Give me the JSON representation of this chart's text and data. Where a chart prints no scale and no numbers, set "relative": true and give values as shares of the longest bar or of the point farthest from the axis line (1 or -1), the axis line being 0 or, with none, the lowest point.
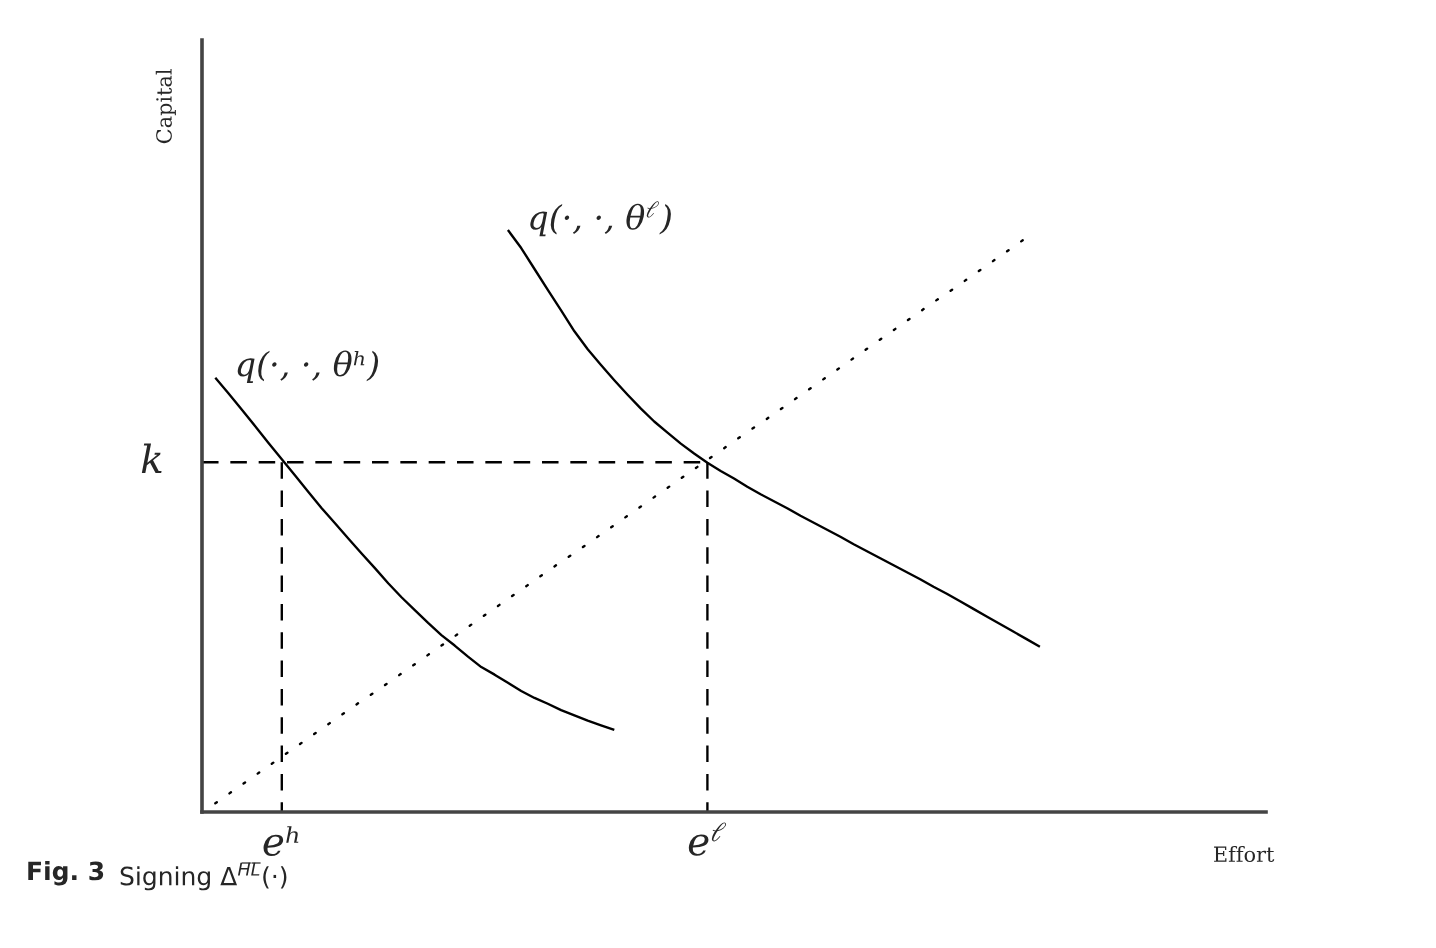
{
  "chart_data": {
    "type": "line",
    "relative": true,
    "xlabel": "Effort",
    "ylabel": "Capital",
    "tick_labels": "x",
    "line_style": "solid",
    "categories": [
      null,
      null,
      null,
      null,
      null,
      null,
      "eʰ",
      null,
      null,
      null,
      null,
      null,
      null,
      null,
      null,
      null,
      null,
      null,
      null,
      null,
      null,
      null,
      null,
      null,
      null,
      null,
      null,
      null,
      null,
      null,
      null,
      null,
      null,
      null,
      null,
      null,
      null,
      null,
      "e$^{ℓ}$",
      null,
      null,
      null,
      null,
      null,
      null,
      null,
      null,
      null,
      null,
      null,
      null,
      null,
      null,
      null,
      null,
      null,
      null,
      null,
      null,
      null,
      null,
      null,
      null,
      null,
      null,
      null,
      null,
      null,
      null,
      null,
      null,
      null,
      null,
      null,
      null,
      null,
      null,
      null,
      null,
      null,
      null
    ],
    "series": [
      {
        "name": "q(·, ·, θʰ)",
        "color": "#000000",
        "values": [
          null,
          0.746,
          0.719,
          0.691,
          0.663,
          0.634,
          0.606,
          0.578,
          0.55,
          0.522,
          0.496,
          0.47,
          0.444,
          0.419,
          0.393,
          0.369,
          0.347,
          0.325,
          0.304,
          0.286,
          0.267,
          0.249,
          0.236,
          0.222,
          0.208,
          0.196,
          0.186,
          0.175,
          0.166,
          0.157,
          0.149,
          0.141,
          null,
          null,
          null,
          null,
          null,
          null,
          null,
          null,
          null,
          null,
          null,
          null,
          null,
          null,
          null,
          null,
          null,
          null,
          null,
          null,
          null,
          null,
          null,
          null,
          null,
          null,
          null,
          null,
          null,
          null,
          null,
          null,
          null,
          null,
          null,
          null,
          null,
          null,
          null,
          null,
          null,
          null,
          null,
          null,
          null,
          null,
          null,
          null,
          null
        ]
      },
      {
        "name": "q(·, ·, θ$^{ℓ}$)",
        "color": "#000000",
        "values": [
          null,
          null,
          null,
          null,
          null,
          null,
          null,
          null,
          null,
          null,
          null,
          null,
          null,
          null,
          null,
          null,
          null,
          null,
          null,
          null,
          null,
          null,
          null,
          1.0,
          0.969,
          0.933,
          0.897,
          0.862,
          0.826,
          0.795,
          0.768,
          0.742,
          0.717,
          0.693,
          0.671,
          0.652,
          0.633,
          0.616,
          0.6,
          0.586,
          0.573,
          0.559,
          0.546,
          0.534,
          0.522,
          0.509,
          0.497,
          0.485,
          0.473,
          0.46,
          0.448,
          0.436,
          0.424,
          0.412,
          0.4,
          0.387,
          0.375,
          0.362,
          0.349,
          0.336,
          0.323,
          0.31,
          0.297,
          0.284,
          null,
          null,
          null,
          null,
          null,
          null,
          null,
          null,
          null,
          null,
          null,
          null,
          null,
          null,
          null,
          null,
          null
        ]
      },
      {
        "color": "#000000",
        "line_style": "dotted",
        "values": [
          null,
          0.015,
          0.031,
          0.047,
          0.063,
          0.079,
          0.095,
          0.111,
          0.127,
          0.143,
          0.159,
          0.175,
          0.191,
          0.206,
          0.222,
          0.238,
          0.254,
          0.27,
          0.286,
          0.302,
          0.318,
          0.334,
          0.35,
          0.366,
          0.382,
          0.398,
          0.414,
          0.43,
          0.445,
          0.461,
          0.477,
          0.493,
          0.509,
          0.525,
          0.541,
          0.557,
          0.573,
          0.589,
          0.605,
          0.621,
          0.637,
          0.653,
          0.668,
          0.684,
          0.7,
          0.716,
          0.732,
          0.748,
          0.764,
          0.78,
          0.796,
          0.812,
          0.828,
          0.844,
          0.86,
          0.876,
          0.891,
          0.907,
          0.923,
          0.939,
          0.955,
          0.971,
          0.987,
          null,
          null,
          null,
          null,
          null,
          null,
          null,
          null,
          null,
          null,
          null,
          null,
          null,
          null,
          null,
          null,
          null,
          null
        ]
      }
    ],
    "ref_lines": [
      {
        "axis": "y",
        "value": 0.601,
        "label": "k",
        "color": "#000000",
        "line_style": "dashed"
      },
      {
        "axis": "x",
        "value": "eʰ",
        "color": "#000000",
        "line_style": "dashed"
      },
      {
        "axis": "x",
        "value": "e$^{ℓ}$",
        "color": "#000000",
        "line_style": "dashed"
      }
    ],
    "annotations": [
      "Fig. 3",
      "Signing Δ$^{H̅L̅}$(·)"
    ]
  }
}
